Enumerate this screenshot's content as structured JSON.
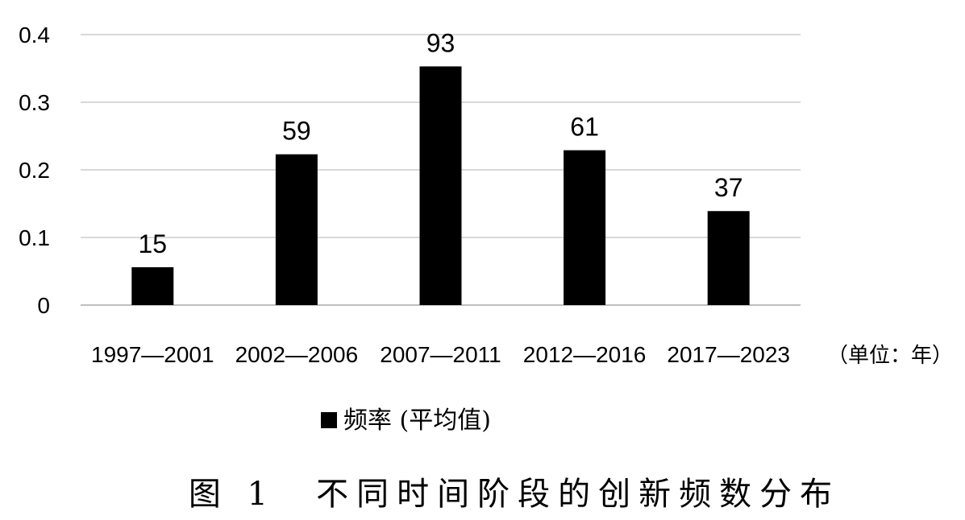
{
  "chart_data": {
    "type": "bar",
    "categories": [
      "1997—2001",
      "2002—2006",
      "2007—2011",
      "2012—2016",
      "2017—2023"
    ],
    "series": [
      {
        "name": "频率 (平均值)",
        "values": [
          0.056,
          0.223,
          0.353,
          0.229,
          0.139
        ],
        "data_labels": [
          "15",
          "59",
          "93",
          "61",
          "37"
        ],
        "color": "#000000"
      }
    ],
    "ylim": [
      0,
      0.4
    ],
    "yticks": [
      "0",
      "0.1",
      "0.2",
      "0.3",
      "0.4"
    ],
    "grid": true,
    "gridline_color": "#d9d9d9",
    "axis_color": "#bfbfbf",
    "legend_position": "bottom",
    "unit_note": "（单位：年）",
    "caption": "图 1　不同时间阶段的创新频数分布"
  }
}
